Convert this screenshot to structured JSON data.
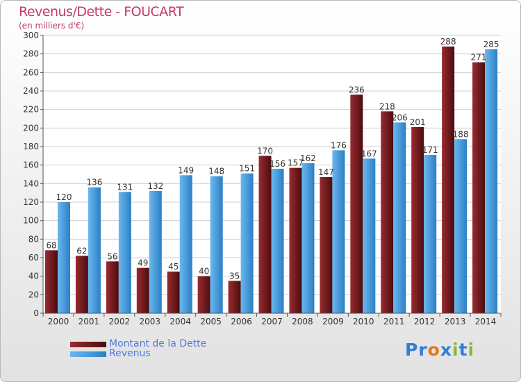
{
  "title": "Revenus/Dette - FOUCART",
  "subtitle": "(en milliers d'€)",
  "colors": {
    "debt": "#7a1e22",
    "revenue": "#4aa3e8",
    "title": "#c03a6e",
    "legend_text": "#4f7bd8"
  },
  "chart_data": {
    "type": "bar",
    "categories": [
      "2000",
      "2001",
      "2002",
      "2003",
      "2004",
      "2005",
      "2006",
      "2007",
      "2008",
      "2009",
      "2010",
      "2011",
      "2012",
      "2013",
      "2014"
    ],
    "series": [
      {
        "name": "Montant de la Dette",
        "values": [
          68,
          62,
          56,
          49,
          45,
          40,
          35,
          170,
          157,
          147,
          236,
          218,
          201,
          288,
          271
        ]
      },
      {
        "name": "Revenus",
        "values": [
          120,
          136,
          131,
          132,
          149,
          148,
          151,
          156,
          162,
          176,
          167,
          206,
          171,
          188,
          285
        ]
      }
    ],
    "data_labels": {
      "debt": [
        "68",
        "62",
        "56",
        "49",
        "45",
        "40",
        "35",
        "170",
        "157",
        "147",
        "236",
        "218",
        "201",
        "288",
        "271"
      ],
      "revenue": [
        "120",
        "136",
        "131",
        "132",
        "149",
        "148",
        "151",
        "156",
        "162",
        "176",
        "167",
        "206",
        "171",
        "188",
        "285"
      ]
    },
    "ylim": [
      0,
      300
    ],
    "yticks": [
      "0",
      "20",
      "40",
      "60",
      "80",
      "100",
      "120",
      "140",
      "160",
      "180",
      "200",
      "220",
      "240",
      "260",
      "280",
      "300"
    ],
    "grid": true,
    "legend_position": "bottom-left"
  },
  "legend": {
    "debt": "Montant de la Dette",
    "revenue": "Revenus"
  },
  "logo": {
    "text": "Proxiti",
    "letters": [
      "P",
      "r",
      "o",
      "x",
      "i",
      "t",
      "i"
    ],
    "letter_colors": [
      "#2f7fd6",
      "#2f7fd6",
      "#e3761d",
      "#2f7fd6",
      "#86b83a",
      "#2f7fd6",
      "#86b83a"
    ]
  }
}
